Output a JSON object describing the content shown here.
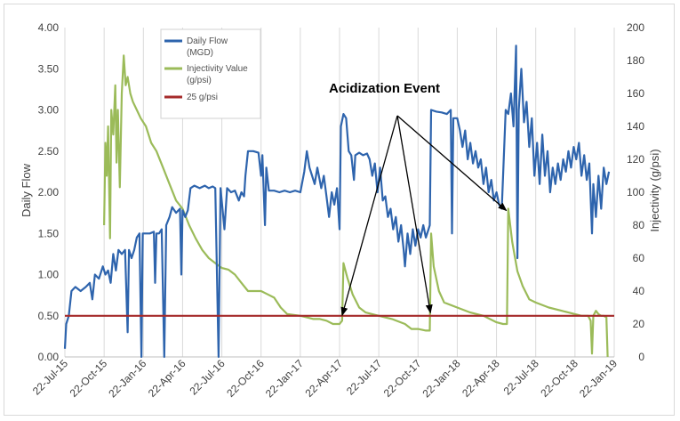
{
  "chart_data": {
    "type": "line",
    "title": "",
    "annotation": "Acidization  Event",
    "ylabel_left": "Daily Flow",
    "ylabel_right": "Injectivity (g/psi)",
    "ylim_left": [
      0,
      4
    ],
    "ylim_right": [
      0,
      200
    ],
    "yticks_left": [
      "0.00",
      "0.50",
      "1.00",
      "1.50",
      "2.00",
      "2.50",
      "3.00",
      "3.50",
      "4.00"
    ],
    "yticks_right": [
      "0",
      "20",
      "40",
      "60",
      "80",
      "100",
      "120",
      "140",
      "160",
      "180",
      "200"
    ],
    "x_range_months": [
      0,
      42
    ],
    "x_tick_labels": [
      "22-Jul-15",
      "22-Oct-15",
      "22-Jan-16",
      "22-Apr-16",
      "22-Jul-16",
      "22-Oct-16",
      "22-Jan-17",
      "22-Apr-17",
      "22-Jul-17",
      "22-Oct-17",
      "22-Jan-18",
      "22-Apr-18",
      "22-Jul-18",
      "22-Oct-18",
      "22-Jan-19"
    ],
    "grid": "vertical",
    "legend": "top-left",
    "series": [
      {
        "name": "Daily Flow",
        "name_line2": "(MGD)",
        "axis": "left",
        "color": "#2e64ad",
        "points": [
          [
            0,
            0.1
          ],
          [
            0.1,
            0.4
          ],
          [
            0.3,
            0.5
          ],
          [
            0.5,
            0.8
          ],
          [
            0.8,
            0.85
          ],
          [
            1.2,
            0.8
          ],
          [
            1.6,
            0.85
          ],
          [
            1.9,
            0.9
          ],
          [
            2.1,
            0.7
          ],
          [
            2.3,
            1.0
          ],
          [
            2.6,
            0.95
          ],
          [
            2.9,
            1.1
          ],
          [
            3.1,
            1.0
          ],
          [
            3.3,
            1.05
          ],
          [
            3.5,
            0.9
          ],
          [
            3.7,
            1.25
          ],
          [
            3.9,
            1.05
          ],
          [
            4.1,
            1.3
          ],
          [
            4.35,
            1.25
          ],
          [
            4.6,
            1.3
          ],
          [
            4.8,
            0.3
          ],
          [
            4.9,
            1.3
          ],
          [
            5.1,
            1.2
          ],
          [
            5.3,
            1.3
          ],
          [
            5.5,
            1.45
          ],
          [
            5.7,
            1.5
          ],
          [
            5.85,
            0.0
          ],
          [
            5.95,
            1.5
          ],
          [
            6.2,
            1.5
          ],
          [
            6.5,
            1.5
          ],
          [
            6.8,
            1.52
          ],
          [
            6.9,
            0.9
          ],
          [
            7.0,
            1.5
          ],
          [
            7.2,
            1.5
          ],
          [
            7.4,
            1.55
          ],
          [
            7.6,
            0.0
          ],
          [
            7.75,
            1.6
          ],
          [
            8.0,
            1.7
          ],
          [
            8.2,
            1.82
          ],
          [
            8.5,
            1.75
          ],
          [
            8.8,
            1.8
          ],
          [
            8.9,
            1.0
          ],
          [
            9.0,
            1.78
          ],
          [
            9.2,
            1.7
          ],
          [
            9.4,
            1.78
          ],
          [
            9.6,
            2.05
          ],
          [
            9.9,
            2.08
          ],
          [
            10.3,
            2.05
          ],
          [
            10.7,
            2.08
          ],
          [
            11.0,
            2.05
          ],
          [
            11.3,
            2.07
          ],
          [
            11.5,
            2.05
          ],
          [
            11.75,
            0.0
          ],
          [
            11.9,
            2.05
          ],
          [
            12.2,
            1.55
          ],
          [
            12.4,
            2.05
          ],
          [
            12.7,
            2.0
          ],
          [
            13.0,
            2.02
          ],
          [
            13.3,
            1.9
          ],
          [
            13.5,
            2.0
          ],
          [
            13.7,
            1.95
          ],
          [
            13.8,
            2.2
          ],
          [
            14.0,
            2.5
          ],
          [
            14.4,
            2.5
          ],
          [
            14.8,
            2.48
          ],
          [
            15.0,
            2.2
          ],
          [
            15.1,
            2.45
          ],
          [
            15.3,
            1.6
          ],
          [
            15.4,
            2.3
          ],
          [
            15.6,
            2.02
          ],
          [
            16.0,
            2.02
          ],
          [
            16.4,
            2.0
          ],
          [
            16.8,
            2.02
          ],
          [
            17.2,
            2.0
          ],
          [
            17.6,
            2.02
          ],
          [
            18.0,
            2.0
          ],
          [
            18.3,
            2.25
          ],
          [
            18.5,
            2.5
          ],
          [
            18.7,
            2.3
          ],
          [
            18.9,
            2.2
          ],
          [
            19.1,
            2.1
          ],
          [
            19.3,
            2.3
          ],
          [
            19.6,
            2.05
          ],
          [
            19.8,
            2.2
          ],
          [
            20.0,
            1.95
          ],
          [
            20.2,
            1.7
          ],
          [
            20.4,
            2.0
          ],
          [
            20.6,
            1.85
          ],
          [
            20.8,
            2.05
          ],
          [
            21.0,
            1.55
          ],
          [
            21.1,
            2.8
          ],
          [
            21.3,
            2.95
          ],
          [
            21.5,
            2.9
          ],
          [
            21.7,
            2.5
          ],
          [
            21.9,
            2.45
          ],
          [
            22.1,
            2.15
          ],
          [
            22.2,
            2.45
          ],
          [
            22.5,
            2.48
          ],
          [
            22.8,
            2.45
          ],
          [
            23.1,
            2.47
          ],
          [
            23.3,
            2.4
          ],
          [
            23.5,
            2.2
          ],
          [
            23.7,
            2.35
          ],
          [
            23.9,
            2.0
          ],
          [
            24.1,
            2.3
          ],
          [
            24.3,
            1.9
          ],
          [
            24.5,
            1.95
          ],
          [
            24.7,
            1.7
          ],
          [
            24.9,
            1.8
          ],
          [
            25.1,
            1.55
          ],
          [
            25.3,
            1.7
          ],
          [
            25.5,
            1.4
          ],
          [
            25.7,
            1.6
          ],
          [
            25.9,
            1.3
          ],
          [
            26.0,
            1.1
          ],
          [
            26.2,
            1.5
          ],
          [
            26.4,
            1.25
          ],
          [
            26.6,
            1.55
          ],
          [
            26.8,
            1.35
          ],
          [
            27.0,
            1.55
          ],
          [
            27.2,
            1.45
          ],
          [
            27.4,
            1.6
          ],
          [
            27.6,
            1.45
          ],
          [
            27.8,
            1.55
          ],
          [
            27.9,
            1.6
          ],
          [
            28.0,
            3.0
          ],
          [
            28.4,
            2.98
          ],
          [
            28.8,
            2.97
          ],
          [
            29.2,
            2.95
          ],
          [
            29.5,
            3.0
          ],
          [
            29.6,
            1.5
          ],
          [
            29.7,
            2.9
          ],
          [
            30.0,
            2.9
          ],
          [
            30.2,
            2.75
          ],
          [
            30.4,
            2.55
          ],
          [
            30.6,
            2.75
          ],
          [
            30.8,
            2.4
          ],
          [
            31.0,
            2.6
          ],
          [
            31.2,
            2.35
          ],
          [
            31.4,
            2.5
          ],
          [
            31.6,
            2.3
          ],
          [
            31.8,
            2.4
          ],
          [
            32.0,
            2.1
          ],
          [
            32.2,
            2.3
          ],
          [
            32.4,
            2.0
          ],
          [
            32.6,
            2.15
          ],
          [
            32.8,
            1.9
          ],
          [
            33.0,
            2.0
          ],
          [
            33.2,
            1.85
          ],
          [
            33.4,
            1.8
          ],
          [
            33.7,
            3.0
          ],
          [
            33.9,
            2.95
          ],
          [
            34.1,
            3.2
          ],
          [
            34.3,
            2.8
          ],
          [
            34.5,
            3.78
          ],
          [
            34.6,
            1.2
          ],
          [
            34.7,
            3.0
          ],
          [
            34.9,
            3.5
          ],
          [
            35.1,
            2.85
          ],
          [
            35.3,
            3.1
          ],
          [
            35.5,
            2.55
          ],
          [
            35.7,
            2.9
          ],
          [
            35.9,
            2.2
          ],
          [
            36.1,
            2.6
          ],
          [
            36.3,
            2.1
          ],
          [
            36.5,
            2.7
          ],
          [
            36.7,
            2.2
          ],
          [
            36.9,
            2.5
          ],
          [
            37.1,
            2.0
          ],
          [
            37.3,
            2.3
          ],
          [
            37.5,
            2.1
          ],
          [
            37.7,
            2.35
          ],
          [
            37.9,
            2.15
          ],
          [
            38.1,
            2.4
          ],
          [
            38.3,
            2.25
          ],
          [
            38.5,
            2.5
          ],
          [
            38.7,
            2.3
          ],
          [
            38.9,
            2.55
          ],
          [
            39.1,
            2.4
          ],
          [
            39.3,
            2.6
          ],
          [
            39.5,
            2.2
          ],
          [
            39.7,
            2.45
          ],
          [
            39.9,
            2.15
          ],
          [
            40.1,
            2.35
          ],
          [
            40.3,
            1.5
          ],
          [
            40.4,
            2.1
          ],
          [
            40.6,
            1.7
          ],
          [
            40.8,
            2.2
          ],
          [
            41.0,
            1.8
          ],
          [
            41.2,
            2.3
          ],
          [
            41.4,
            2.1
          ],
          [
            41.6,
            2.25
          ]
        ]
      },
      {
        "name": "Injectivity Value",
        "name_line2": "(g/psi)",
        "axis": "right",
        "color": "#9bbb59",
        "points": [
          [
            3.0,
            80
          ],
          [
            3.1,
            130
          ],
          [
            3.2,
            110
          ],
          [
            3.3,
            140
          ],
          [
            3.45,
            72
          ],
          [
            3.55,
            150
          ],
          [
            3.7,
            135
          ],
          [
            3.85,
            165
          ],
          [
            3.95,
            118
          ],
          [
            4.05,
            150
          ],
          [
            4.2,
            103
          ],
          [
            4.35,
            160
          ],
          [
            4.5,
            183
          ],
          [
            4.65,
            165
          ],
          [
            4.8,
            170
          ],
          [
            5.0,
            160
          ],
          [
            5.2,
            155
          ],
          [
            5.5,
            150
          ],
          [
            5.8,
            145
          ],
          [
            6.2,
            140
          ],
          [
            6.6,
            130
          ],
          [
            7.0,
            125
          ],
          [
            7.5,
            115
          ],
          [
            8.0,
            105
          ],
          [
            8.5,
            95
          ],
          [
            9.0,
            90
          ],
          [
            9.5,
            80
          ],
          [
            10.0,
            72
          ],
          [
            10.5,
            65
          ],
          [
            11.0,
            60
          ],
          [
            11.5,
            57
          ],
          [
            12.0,
            54
          ],
          [
            12.5,
            53
          ],
          [
            13.0,
            50
          ],
          [
            13.5,
            45
          ],
          [
            14.0,
            40
          ],
          [
            15.0,
            40
          ],
          [
            15.5,
            38
          ],
          [
            16.0,
            36
          ],
          [
            16.5,
            30
          ],
          [
            17.0,
            26
          ],
          [
            18.0,
            25
          ],
          [
            18.5,
            24
          ],
          [
            19.0,
            23
          ],
          [
            19.5,
            23
          ],
          [
            20.0,
            22
          ],
          [
            20.5,
            20
          ],
          [
            21.0,
            20
          ],
          [
            21.2,
            22
          ],
          [
            21.3,
            57
          ],
          [
            21.6,
            48
          ],
          [
            22.0,
            38
          ],
          [
            22.5,
            30
          ],
          [
            23.0,
            27
          ],
          [
            24.0,
            25
          ],
          [
            25.0,
            23
          ],
          [
            26.0,
            20
          ],
          [
            26.5,
            17
          ],
          [
            27.0,
            17
          ],
          [
            27.6,
            16
          ],
          [
            27.9,
            16
          ],
          [
            28.0,
            75
          ],
          [
            28.2,
            55
          ],
          [
            28.6,
            40
          ],
          [
            29.0,
            33
          ],
          [
            30.0,
            30
          ],
          [
            31.0,
            27
          ],
          [
            32.0,
            25
          ],
          [
            33.0,
            21
          ],
          [
            33.5,
            20
          ],
          [
            33.8,
            20
          ],
          [
            33.9,
            90
          ],
          [
            34.2,
            70
          ],
          [
            34.6,
            52
          ],
          [
            35.0,
            43
          ],
          [
            35.5,
            35
          ],
          [
            36.0,
            33
          ],
          [
            37.0,
            30
          ],
          [
            38.0,
            28
          ],
          [
            38.5,
            27
          ],
          [
            39.0,
            26
          ],
          [
            39.5,
            25
          ],
          [
            40.0,
            25
          ],
          [
            40.2,
            22
          ],
          [
            40.3,
            2
          ],
          [
            40.4,
            25
          ],
          [
            40.6,
            28
          ],
          [
            40.8,
            26
          ],
          [
            41.0,
            25
          ],
          [
            41.2,
            25
          ],
          [
            41.4,
            24
          ],
          [
            41.5,
            0
          ]
        ]
      },
      {
        "name": "25 g/psi",
        "axis": "right",
        "color": "#a52a2a",
        "points": [
          [
            0,
            25
          ],
          [
            42,
            25
          ]
        ]
      }
    ],
    "arrows_to_months": [
      21.2,
      27.95,
      33.75
    ]
  }
}
